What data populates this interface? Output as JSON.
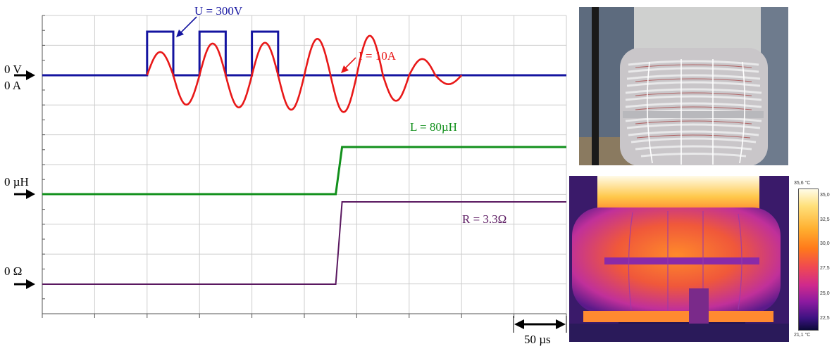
{
  "chart_data": {
    "type": "line",
    "x_unit": "µs",
    "x_range": [
      0,
      250
    ],
    "scale_label": "50 µs",
    "voltage_annotation": "U = 300V",
    "current_annotation": "I = 10A",
    "inductance_annotation": "L = 80µH",
    "resistance_annotation": "R = 3.3Ω",
    "zero_labels": {
      "voltage": "0 V",
      "current": "0 A",
      "inductance": "0 µH",
      "resistance": "0 Ω"
    },
    "series": [
      {
        "name": "U = 300V",
        "color": "#1414a0",
        "quantity": "voltage",
        "x": [
          0,
          50,
          50,
          62.5,
          62.5,
          75,
          75,
          87.5,
          87.5,
          100,
          100,
          112.5,
          112.5,
          250
        ],
        "y": [
          0,
          0,
          300,
          300,
          0,
          0,
          300,
          300,
          0,
          0,
          300,
          300,
          0,
          0
        ]
      },
      {
        "name": "I = 10A",
        "color": "#e81818",
        "quantity": "current",
        "pulse_start": 50,
        "period": 25,
        "amplitude_peaks": [
          6,
          7.6,
          8.2,
          8.3,
          8.4,
          8.9,
          9.4,
          9.5,
          10.2,
          6.6,
          4.2,
          2.3,
          1.2,
          0.5,
          0.2
        ],
        "end": 200
      },
      {
        "name": "L = 80µH",
        "color": "#12901c",
        "quantity": "inductance",
        "x": [
          0,
          140,
          143,
          250
        ],
        "y": [
          0,
          0,
          80,
          80
        ]
      },
      {
        "name": "R = 3.3Ω",
        "color": "#5a1860",
        "quantity": "resistance",
        "x": [
          0,
          140,
          143,
          250
        ],
        "y": [
          0,
          0,
          3.3,
          3.3
        ]
      }
    ]
  },
  "thermal_scale": {
    "max_label": "35,6 °C",
    "min_label": "21,1 °C",
    "ticks": [
      "35,0",
      "32,5",
      "30,0",
      "27,5",
      "25,0",
      "22,5"
    ]
  }
}
